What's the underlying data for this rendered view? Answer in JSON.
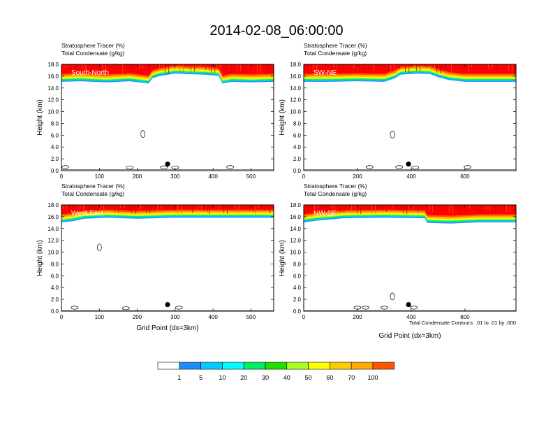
{
  "title": "2014-02-08_06:00:00",
  "panel_header": {
    "line1_name": "Stratosphere Tracer",
    "line1_unit": "(%)",
    "line2_name": "Total Condensate",
    "line2_unit": "(g/kg)"
  },
  "footnote": "Total Condensate Contours: .01 to .01 by .000",
  "colors": {
    "c1": "#ffffff",
    "c2": "#1e8cff",
    "c3": "#00ccff",
    "c4": "#00ffff",
    "c5": "#00ee66",
    "c6": "#22dd00",
    "c7": "#aaff22",
    "c8": "#ffff00",
    "c9": "#ffcc00",
    "c10": "#ffaa00",
    "c11": "#ff5500",
    "c12": "#ff0000"
  },
  "chart_data": [
    {
      "type": "heatmap",
      "panel": "South-North",
      "label": "South-North",
      "xlabel": "",
      "ylabel": "Height (km)",
      "xlim": [
        0,
        560
      ],
      "ylim": [
        0,
        18
      ],
      "xticks": [
        0,
        100,
        200,
        300,
        400,
        500
      ],
      "yticks": [
        "0.0",
        "2.0",
        "4.0",
        "6.0",
        "8.0",
        "10.0",
        "12.0",
        "14.0",
        "16.0",
        "18.0"
      ],
      "tropopause": [
        [
          0,
          15.6
        ],
        [
          50,
          15.7
        ],
        [
          120,
          15.5
        ],
        [
          180,
          15.7
        ],
        [
          230,
          15.3
        ],
        [
          240,
          16.2
        ],
        [
          260,
          16.6
        ],
        [
          300,
          17.0
        ],
        [
          330,
          16.9
        ],
        [
          380,
          16.8
        ],
        [
          415,
          16.6
        ],
        [
          425,
          15.3
        ],
        [
          450,
          15.6
        ],
        [
          500,
          15.5
        ],
        [
          560,
          15.6
        ]
      ],
      "marker": {
        "x": 280,
        "y": 1.0
      },
      "contours": [
        {
          "x": 10,
          "y": 0.6
        },
        {
          "x": 180,
          "y": 0.5
        },
        {
          "x": 215,
          "y": 6.2
        },
        {
          "x": 270,
          "y": 0.55
        },
        {
          "x": 300,
          "y": 0.5
        },
        {
          "x": 445,
          "y": 0.6
        }
      ]
    },
    {
      "type": "heatmap",
      "panel": "SW-NE",
      "label": "SW-NE",
      "xlabel": "",
      "ylabel": "Height (km)",
      "xlim": [
        0,
        790
      ],
      "ylim": [
        0,
        18
      ],
      "xticks": [
        0,
        200,
        400,
        600
      ],
      "yticks": [
        "0.0",
        "2.0",
        "4.0",
        "6.0",
        "8.0",
        "10.0",
        "12.0",
        "14.0",
        "16.0",
        "18.0"
      ],
      "tropopause": [
        [
          0,
          15.6
        ],
        [
          100,
          15.6
        ],
        [
          200,
          15.7
        ],
        [
          300,
          15.6
        ],
        [
          340,
          16.2
        ],
        [
          360,
          16.8
        ],
        [
          420,
          17.0
        ],
        [
          470,
          16.9
        ],
        [
          500,
          16.4
        ],
        [
          540,
          15.9
        ],
        [
          600,
          15.6
        ],
        [
          700,
          15.6
        ],
        [
          790,
          15.6
        ]
      ],
      "marker": {
        "x": 390,
        "y": 1.0
      },
      "contours": [
        {
          "x": 245,
          "y": 0.6
        },
        {
          "x": 330,
          "y": 6.1
        },
        {
          "x": 355,
          "y": 0.6
        },
        {
          "x": 415,
          "y": 0.5
        },
        {
          "x": 610,
          "y": 0.6
        }
      ]
    },
    {
      "type": "heatmap",
      "panel": "West-East",
      "label": "West-East",
      "xlabel": "Grid Point (dx=3km)",
      "ylabel": "Height (km)",
      "xlim": [
        0,
        560
      ],
      "ylim": [
        0,
        18
      ],
      "xticks": [
        0,
        100,
        200,
        300,
        400,
        500
      ],
      "yticks": [
        "0.0",
        "2.0",
        "4.0",
        "6.0",
        "8.0",
        "10.0",
        "12.0",
        "14.0",
        "16.0",
        "18.0"
      ],
      "tropopause": [
        [
          0,
          15.6
        ],
        [
          30,
          15.8
        ],
        [
          60,
          16.2
        ],
        [
          120,
          16.4
        ],
        [
          200,
          16.2
        ],
        [
          300,
          16.4
        ],
        [
          400,
          16.4
        ],
        [
          500,
          16.4
        ],
        [
          560,
          16.4
        ]
      ],
      "marker": {
        "x": 280,
        "y": 1.0
      },
      "contours": [
        {
          "x": 35,
          "y": 0.6
        },
        {
          "x": 100,
          "y": 10.8
        },
        {
          "x": 170,
          "y": 0.5
        },
        {
          "x": 310,
          "y": 0.6
        }
      ]
    },
    {
      "type": "heatmap",
      "panel": "NW-SE",
      "label": "NW-SE",
      "xlabel": "Grid Point (dx=3km)",
      "ylabel": "Height (km)",
      "xlim": [
        0,
        790
      ],
      "ylim": [
        0,
        18
      ],
      "xticks": [
        0,
        200,
        400,
        600
      ],
      "yticks": [
        "0.0",
        "2.0",
        "4.0",
        "6.0",
        "8.0",
        "10.0",
        "12.0",
        "14.0",
        "16.0",
        "18.0"
      ],
      "tropopause": [
        [
          0,
          15.6
        ],
        [
          50,
          15.9
        ],
        [
          150,
          16.3
        ],
        [
          300,
          16.4
        ],
        [
          450,
          16.3
        ],
        [
          460,
          15.5
        ],
        [
          550,
          15.4
        ],
        [
          650,
          15.6
        ],
        [
          790,
          15.6
        ]
      ],
      "marker": {
        "x": 390,
        "y": 1.0
      },
      "contours": [
        {
          "x": 200,
          "y": 0.6
        },
        {
          "x": 230,
          "y": 0.6
        },
        {
          "x": 300,
          "y": 0.6
        },
        {
          "x": 330,
          "y": 2.5
        },
        {
          "x": 410,
          "y": 0.6
        }
      ]
    }
  ],
  "colorbar": {
    "labels": [
      "1",
      "5",
      "10",
      "20",
      "30",
      "40",
      "50",
      "60",
      "70",
      "100"
    ]
  }
}
